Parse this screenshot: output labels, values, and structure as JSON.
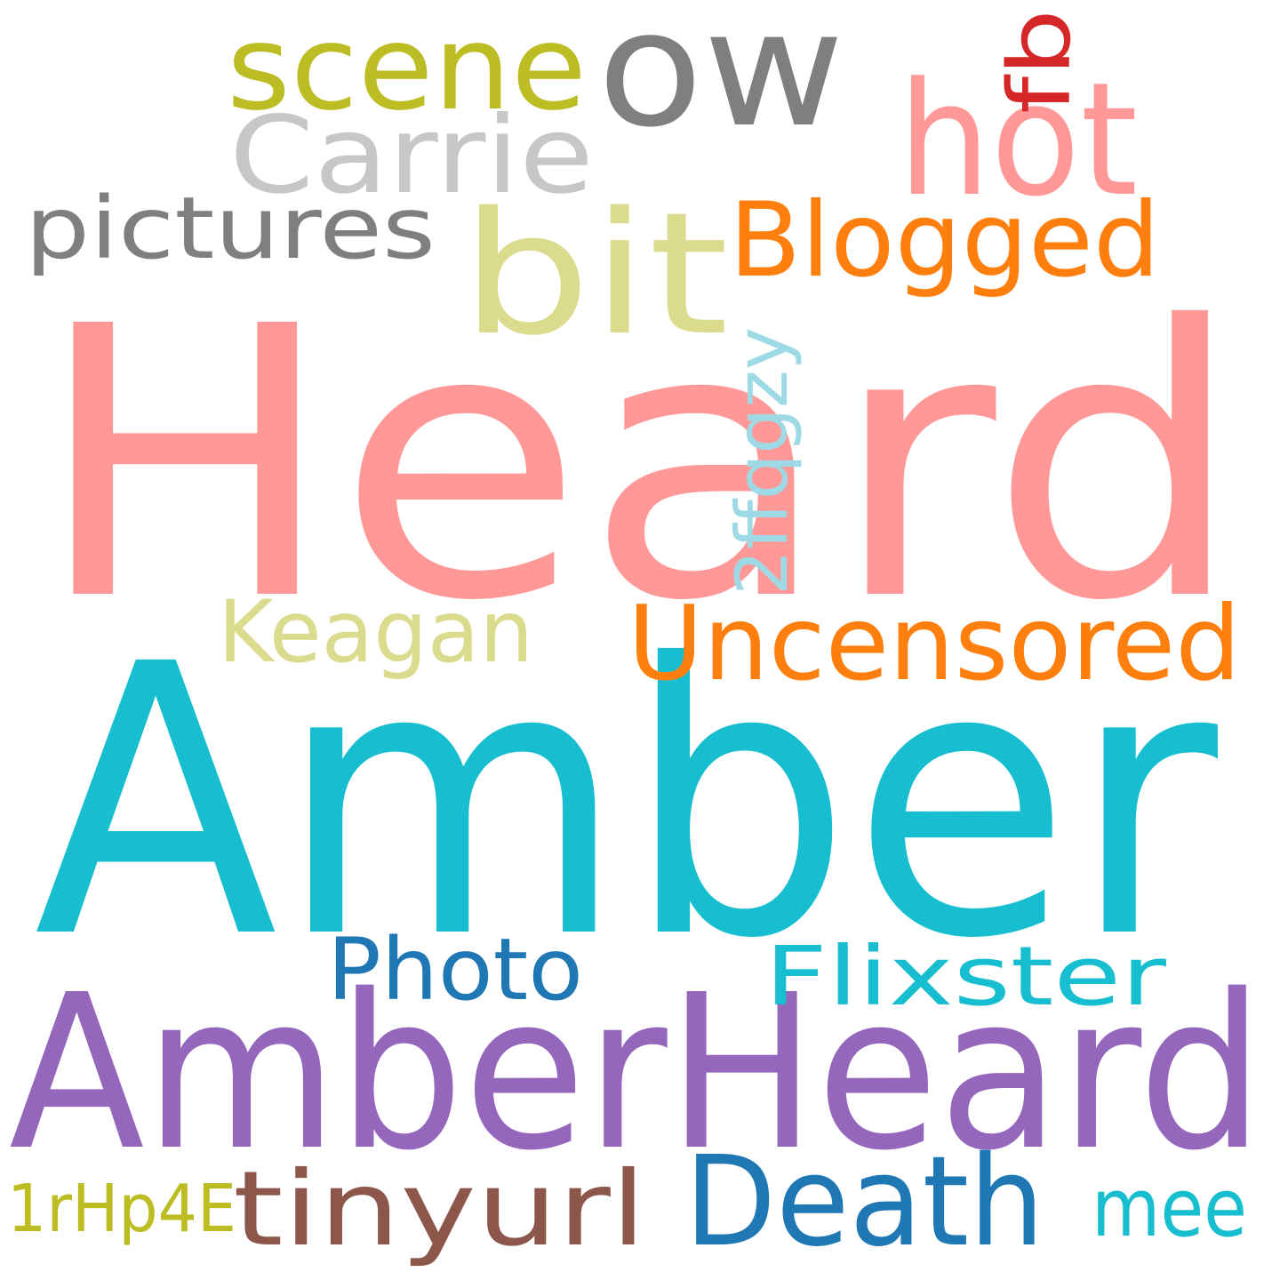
{
  "words": [
    {
      "id": "heard",
      "text": "Heard",
      "color": "#ff9896"
    },
    {
      "id": "amber",
      "text": "Amber",
      "color": "#17becf"
    },
    {
      "id": "amberheard",
      "text": "AmberHeard",
      "color": "#9467bd"
    },
    {
      "id": "ow",
      "text": "ow",
      "color": "#7f7f7f"
    },
    {
      "id": "scene",
      "text": "scene",
      "color": "#bcbd22"
    },
    {
      "id": "hot",
      "text": "hot",
      "color": "#ff9896"
    },
    {
      "id": "fb",
      "text": "fb",
      "color": "#d62728"
    },
    {
      "id": "carrie",
      "text": "Carrie",
      "color": "#c7c7c7"
    },
    {
      "id": "pictures",
      "text": "pictures",
      "color": "#7f7f7f"
    },
    {
      "id": "bit",
      "text": "bit",
      "color": "#dbdb8d"
    },
    {
      "id": "blogged",
      "text": "Blogged",
      "color": "#ff7f0e"
    },
    {
      "id": "2ffqgzy",
      "text": "2ffqgzy",
      "color": "#9edae5"
    },
    {
      "id": "keagan",
      "text": "Keagan",
      "color": "#dbdb8d"
    },
    {
      "id": "uncensored",
      "text": "Uncensored",
      "color": "#ff7f0e"
    },
    {
      "id": "photo",
      "text": "Photo",
      "color": "#1f77b4"
    },
    {
      "id": "flixster",
      "text": "Flixster",
      "color": "#17becf"
    },
    {
      "id": "tinyurl",
      "text": "tinyurl",
      "color": "#8c564b"
    },
    {
      "id": "death",
      "text": "Death",
      "color": "#1f77b4"
    },
    {
      "id": "1rhp4e",
      "text": "1rHp4E",
      "color": "#bcbd22"
    },
    {
      "id": "mee",
      "text": "mee",
      "color": "#17becf"
    }
  ]
}
